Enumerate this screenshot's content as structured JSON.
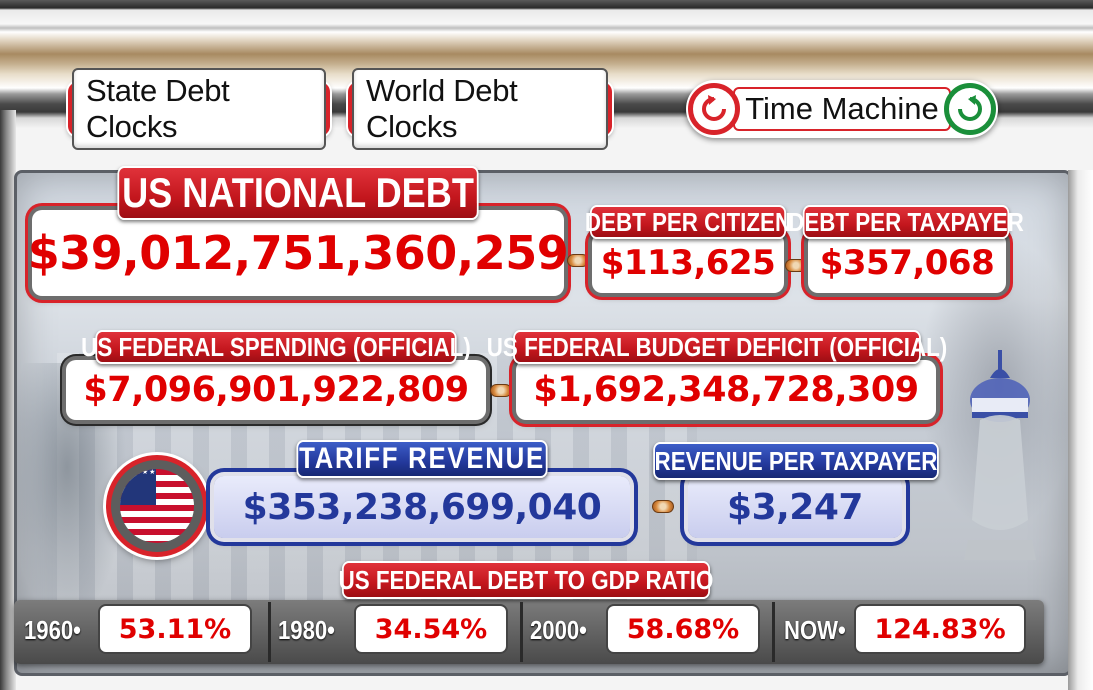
{
  "nav": {
    "state_debt_clocks": "State Debt Clocks",
    "world_debt_clocks": "World Debt Clocks",
    "time_machine": "Time Machine"
  },
  "national_debt": {
    "label": "US NATIONAL DEBT",
    "value": "$39,012,751,360,259"
  },
  "debt_per_citizen": {
    "label": "DEBT PER CITIZEN",
    "value": "$113,625"
  },
  "debt_per_taxpayer": {
    "label": "DEBT PER TAXPAYER",
    "value": "$357,068"
  },
  "federal_spending": {
    "label": "US FEDERAL SPENDING (OFFICIAL)",
    "value": "$7,096,901,922,809"
  },
  "budget_deficit": {
    "label": "US FEDERAL BUDGET DEFICIT (OFFICIAL)",
    "value": "$1,692,348,728,309"
  },
  "tariff_revenue": {
    "label": "TARIFF REVENUE",
    "value": "$353,238,699,040"
  },
  "revenue_per_taxpayer": {
    "label": "REVENUE PER TAXPAYER",
    "value": "$3,247"
  },
  "gdp_ratio": {
    "label": "US FEDERAL DEBT TO GDP RATIO",
    "entries": [
      {
        "year": "1960",
        "value": "53.11%"
      },
      {
        "year": "1980",
        "value": "34.54%"
      },
      {
        "year": "2000",
        "value": "58.68%"
      },
      {
        "year": "NOW",
        "value": "124.83%"
      }
    ]
  },
  "colors": {
    "accent_red": "#d8232a",
    "value_red": "#e00000",
    "accent_blue": "#23389b",
    "forward_green": "#1a8f3a"
  },
  "icons": [
    "undo-arrow-icon",
    "redo-arrow-icon",
    "us-flag-icon",
    "capitol-statue-icon"
  ]
}
